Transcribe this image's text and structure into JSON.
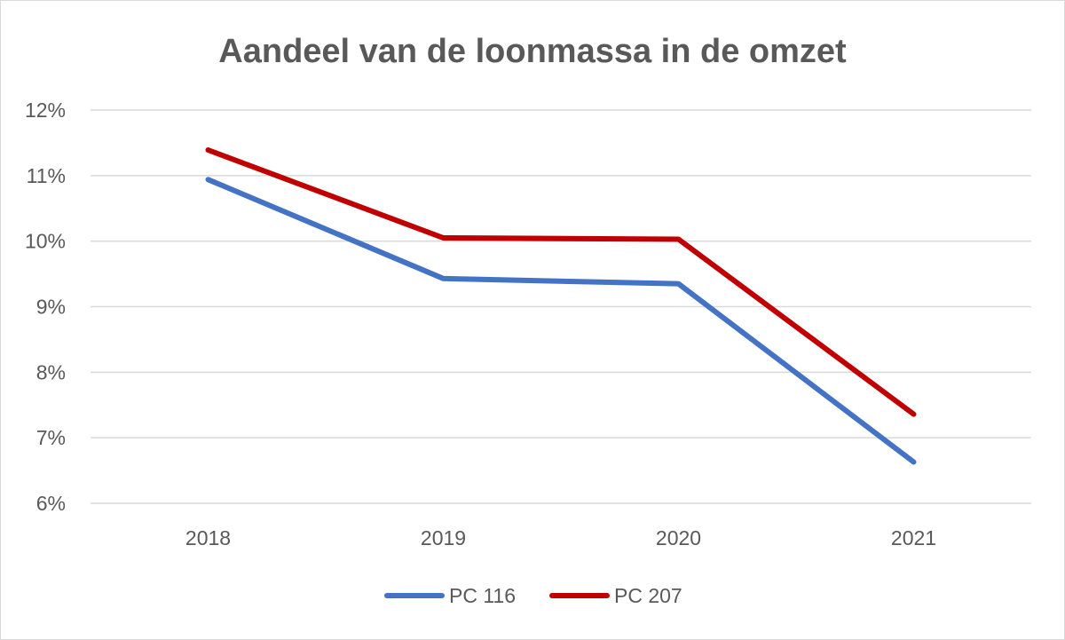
{
  "chart_data": {
    "type": "line",
    "title": "Aandeel van de loonmassa in de omzet",
    "xlabel": "",
    "ylabel": "",
    "categories": [
      "2018",
      "2019",
      "2020",
      "2021"
    ],
    "ylim": [
      0.06,
      0.12
    ],
    "yticks": [
      "6%",
      "7%",
      "8%",
      "9%",
      "10%",
      "11%",
      "12%"
    ],
    "ytick_values": [
      0.06,
      0.07,
      0.08,
      0.09,
      0.1,
      0.11,
      0.12
    ],
    "grid": true,
    "legend_position": "bottom",
    "series": [
      {
        "name": "PC 116",
        "color": "#4472c4",
        "values": [
          0.1094,
          0.0943,
          0.0935,
          0.0663
        ]
      },
      {
        "name": "PC 207",
        "color": "#c00000",
        "values": [
          0.1139,
          0.1005,
          0.1003,
          0.0736
        ]
      }
    ]
  }
}
